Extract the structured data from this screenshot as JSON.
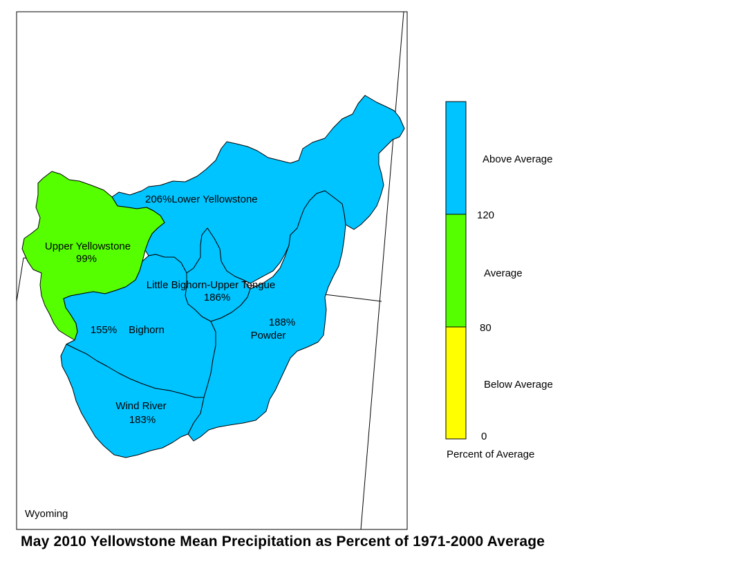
{
  "title": "May 2010 Yellowstone Mean Precipitation as Percent of 1971-2000 Average",
  "state_label": "Wyoming",
  "colors": {
    "above": "#00c4ff",
    "average": "#55ff00",
    "below": "#ffff00",
    "outline": "#000000",
    "background": "#ffffff"
  },
  "basins": [
    {
      "name": "Lower Yellowstone",
      "percent": "206%",
      "category": "above"
    },
    {
      "name": "Upper Yellowstone",
      "percent": "99%",
      "category": "average"
    },
    {
      "name": "Little Bighorn-Upper Tongue",
      "percent": "186%",
      "category": "above"
    },
    {
      "name": "Bighorn",
      "percent": "155%",
      "category": "above"
    },
    {
      "name": "Powder",
      "percent": "188%",
      "category": "above"
    },
    {
      "name": "Wind River",
      "percent": "183%",
      "category": "above"
    }
  ],
  "legend": {
    "title": "Percent of Average",
    "classes": [
      {
        "label": "Above Average",
        "color": "#00c4ff"
      },
      {
        "label": "Average",
        "color": "#55ff00"
      },
      {
        "label": "Below Average",
        "color": "#ffff00"
      }
    ],
    "breaks": [
      "120",
      "80",
      "0"
    ]
  }
}
